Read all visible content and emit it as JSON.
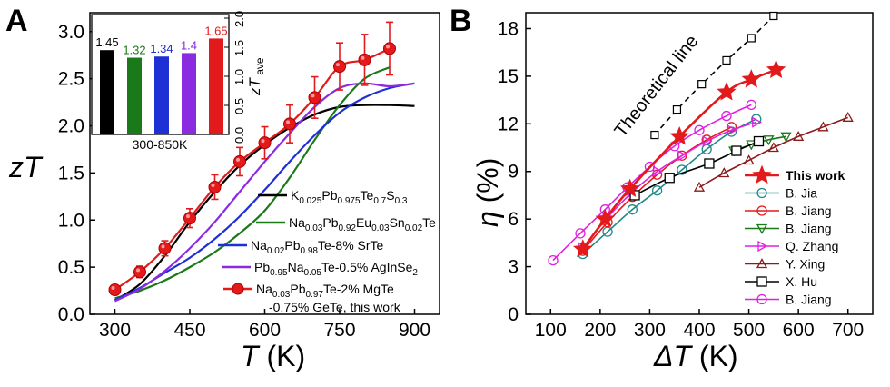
{
  "chart_data": [
    {
      "panel": "A",
      "type": "line",
      "xlabel": "T (K)",
      "ylabel": "zT",
      "xlim": [
        250,
        950
      ],
      "ylim": [
        0.0,
        3.2
      ],
      "xticks": [
        "300",
        "450",
        "600",
        "750",
        "900"
      ],
      "yticks": [
        "0.0",
        "0.5",
        "1.0",
        "1.5",
        "2.0",
        "2.5",
        "3.0"
      ],
      "legend_position": "bottom-right",
      "series": [
        {
          "name": "K0.025Pb0.975Te0.7S0.3",
          "color": "#000000",
          "x": [
            300,
            350,
            400,
            450,
            500,
            550,
            600,
            650,
            700,
            750,
            800,
            850,
            900
          ],
          "y": [
            0.15,
            0.32,
            0.62,
            0.98,
            1.3,
            1.58,
            1.8,
            1.98,
            2.12,
            2.2,
            2.22,
            2.22,
            2.21
          ]
        },
        {
          "name": "Na0.03Pb0.92Eu0.03Sn0.02Te",
          "color": "#1a7a1a",
          "x": [
            300,
            350,
            400,
            450,
            500,
            550,
            600,
            650,
            700,
            750,
            800,
            850
          ],
          "y": [
            0.17,
            0.25,
            0.36,
            0.5,
            0.66,
            0.86,
            1.1,
            1.45,
            1.85,
            2.22,
            2.5,
            2.62
          ]
        },
        {
          "name": "Na0.02Pb0.98Te-8% SrTe",
          "color": "#1f2fd6",
          "x": [
            300,
            350,
            400,
            450,
            500,
            550,
            600,
            650,
            700,
            750,
            800,
            850,
            900
          ],
          "y": [
            0.15,
            0.28,
            0.44,
            0.6,
            0.8,
            1.04,
            1.32,
            1.62,
            1.9,
            2.14,
            2.3,
            2.4,
            2.45
          ]
        },
        {
          "name": "Pb0.95Na0.05Te-0.5% AgInSe2",
          "color": "#8a2be2",
          "x": [
            300,
            350,
            400,
            450,
            500,
            550,
            600,
            650,
            700,
            750,
            800,
            850,
            900
          ],
          "y": [
            0.14,
            0.27,
            0.46,
            0.7,
            0.98,
            1.3,
            1.62,
            1.92,
            2.2,
            2.4,
            2.45,
            2.42,
            2.45
          ]
        },
        {
          "name": "Na0.03Pb0.97Te-2% MgTe -0.75% GeTe, this work",
          "color": "#e31a1c",
          "x": [
            300,
            350,
            400,
            450,
            500,
            550,
            600,
            650,
            700,
            750,
            800,
            850
          ],
          "y": [
            0.26,
            0.45,
            0.7,
            1.02,
            1.35,
            1.62,
            1.82,
            2.02,
            2.3,
            2.63,
            2.7,
            2.82
          ],
          "err": [
            0.05,
            0.06,
            0.08,
            0.1,
            0.13,
            0.15,
            0.17,
            0.2,
            0.22,
            0.25,
            0.27,
            0.28
          ]
        }
      ],
      "inset": {
        "type": "bar",
        "xlabel": "300-850K",
        "ylabel": "zT ave",
        "ylim": [
          0.0,
          2.0
        ],
        "yticks": [
          "0.0",
          "0.5",
          "1.0",
          "1.5",
          "2.0"
        ],
        "values": [
          1.45,
          1.32,
          1.34,
          1.4,
          1.65
        ],
        "labels": [
          "1.45",
          "1.32",
          "1.34",
          "1.4",
          "1.65"
        ],
        "colors": [
          "#000000",
          "#1a7a1a",
          "#1f2fd6",
          "#8a2be2",
          "#e31a1c"
        ]
      }
    },
    {
      "panel": "B",
      "type": "line",
      "xlabel": "ΔT (K)",
      "ylabel": "η (%)",
      "xlim": [
        50,
        750
      ],
      "ylim": [
        0,
        19
      ],
      "xticks": [
        "100",
        "200",
        "300",
        "400",
        "500",
        "600",
        "700"
      ],
      "yticks": [
        "0",
        "3",
        "6",
        "9",
        "12",
        "15",
        "18"
      ],
      "legend_position": "bottom-right",
      "annotation": "Theoretical line",
      "theoretical_line": {
        "x": [
          310,
          355,
          405,
          455,
          505,
          550
        ],
        "y": [
          11.3,
          12.9,
          14.5,
          16.0,
          17.4,
          18.8
        ]
      },
      "series": [
        {
          "name": "This work",
          "color": "#e31a1c",
          "marker": "star",
          "x": [
            165,
            210,
            260,
            360,
            455,
            505,
            555
          ],
          "y": [
            4.1,
            6.0,
            7.9,
            11.2,
            14.0,
            14.8,
            15.4
          ]
        },
        {
          "name": "B. Jia",
          "color": "#1f8a8a",
          "marker": "circle",
          "x": [
            165,
            215,
            265,
            315,
            365,
            415,
            465,
            515
          ],
          "y": [
            3.8,
            5.2,
            6.6,
            7.8,
            9.1,
            10.4,
            11.5,
            12.3
          ]
        },
        {
          "name": "B. Jiang",
          "color": "#e31a1c",
          "marker": "circle",
          "x": [
            165,
            215,
            265,
            315,
            365,
            415,
            465
          ],
          "y": [
            4.0,
            5.8,
            7.4,
            8.8,
            10.0,
            11.0,
            11.8
          ]
        },
        {
          "name": "B. Jiang",
          "color": "#1a7a1a",
          "marker": "triangle-down",
          "x": [
            470,
            505,
            540,
            575
          ],
          "y": [
            10.3,
            10.7,
            11.0,
            11.2
          ]
        },
        {
          "name": "Q. Zhang",
          "color": "#e020e0",
          "marker": "triangle-right",
          "x": [
            165,
            215,
            265,
            315,
            365,
            415,
            465,
            515
          ],
          "y": [
            4.2,
            6.1,
            7.7,
            9.0,
            10.0,
            10.9,
            11.6,
            12.1
          ]
        },
        {
          "name": "Y. Xing",
          "color": "#8b1a1a",
          "marker": "triangle-up",
          "x": [
            400,
            450,
            500,
            550,
            600,
            650,
            700
          ],
          "y": [
            8.0,
            8.9,
            9.7,
            10.5,
            11.2,
            11.8,
            12.4
          ]
        },
        {
          "name": "X. Hu",
          "color": "#000000",
          "marker": "square",
          "x": [
            270,
            340,
            420,
            475,
            520
          ],
          "y": [
            7.5,
            8.6,
            9.5,
            10.3,
            10.9
          ]
        },
        {
          "name": "B. Jiang",
          "color": "#e020e0",
          "marker": "circle",
          "x": [
            105,
            160,
            210,
            255,
            300,
            350,
            400,
            455,
            505
          ],
          "y": [
            3.4,
            5.1,
            6.6,
            8.0,
            9.3,
            10.6,
            11.6,
            12.5,
            13.2
          ]
        }
      ]
    }
  ],
  "panels": {
    "a_label": "A",
    "b_label": "B"
  }
}
